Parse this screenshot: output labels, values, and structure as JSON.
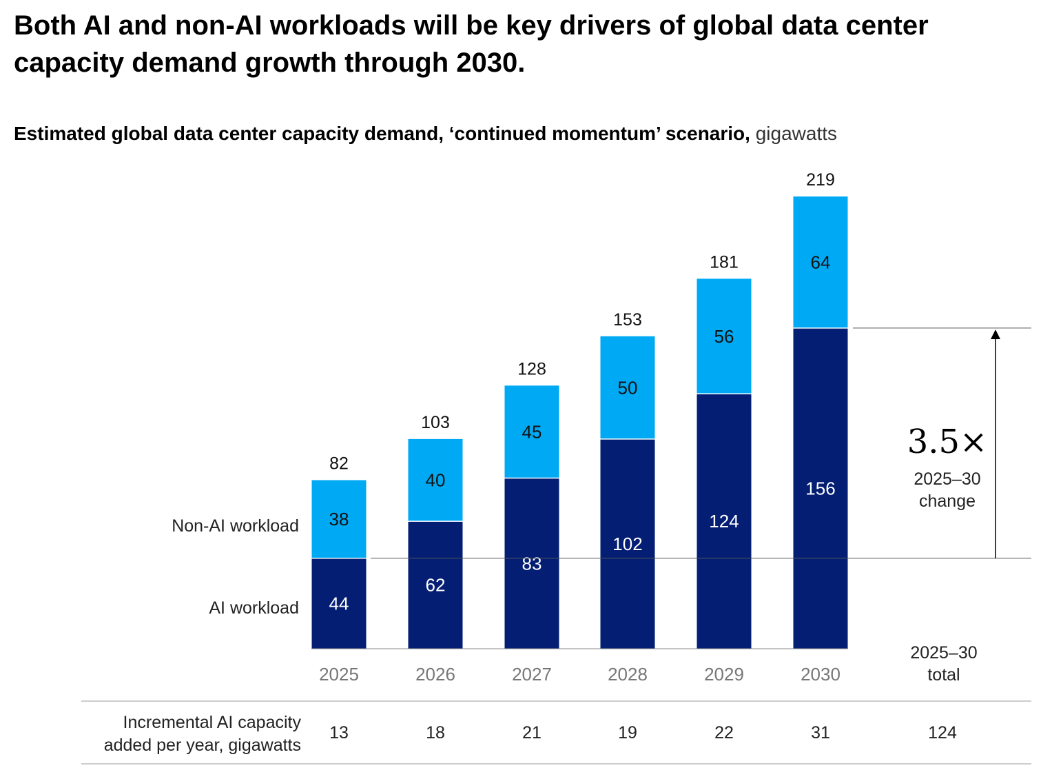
{
  "headline": "Both AI and non-AI workloads will be key drivers of global data center capacity demand growth through 2030.",
  "subtitle": {
    "bold": "Estimated global data center capacity demand, ‘continued momentum’ scenario,",
    "unit": "gigawatts"
  },
  "colors": {
    "ai": "#041e73",
    "non_ai": "#00a9f4",
    "axis_text": "#777777",
    "rule": "#bbbbbb"
  },
  "chart_data": {
    "type": "bar",
    "stacked": true,
    "categories": [
      "2025",
      "2026",
      "2027",
      "2028",
      "2029",
      "2030"
    ],
    "series": [
      {
        "name": "AI workload",
        "values": [
          44,
          62,
          83,
          102,
          124,
          156
        ]
      },
      {
        "name": "Non-AI workload",
        "values": [
          38,
          40,
          45,
          50,
          56,
          64
        ]
      }
    ],
    "totals": [
      "82",
      "103",
      "128",
      "153",
      "181",
      "219"
    ],
    "ylim": [
      0,
      219
    ],
    "grid": false,
    "legend": "left"
  },
  "annotation": {
    "multiplier": "3.5×",
    "line1": "2025–30",
    "line2": "change"
  },
  "table": {
    "total_header_line1": "2025–30",
    "total_header_line2": "total",
    "row_label_line1": "Incremental AI capacity",
    "row_label_line2": "added per year, gigawatts",
    "values": [
      "13",
      "18",
      "21",
      "19",
      "22",
      "31"
    ],
    "total": "124"
  }
}
